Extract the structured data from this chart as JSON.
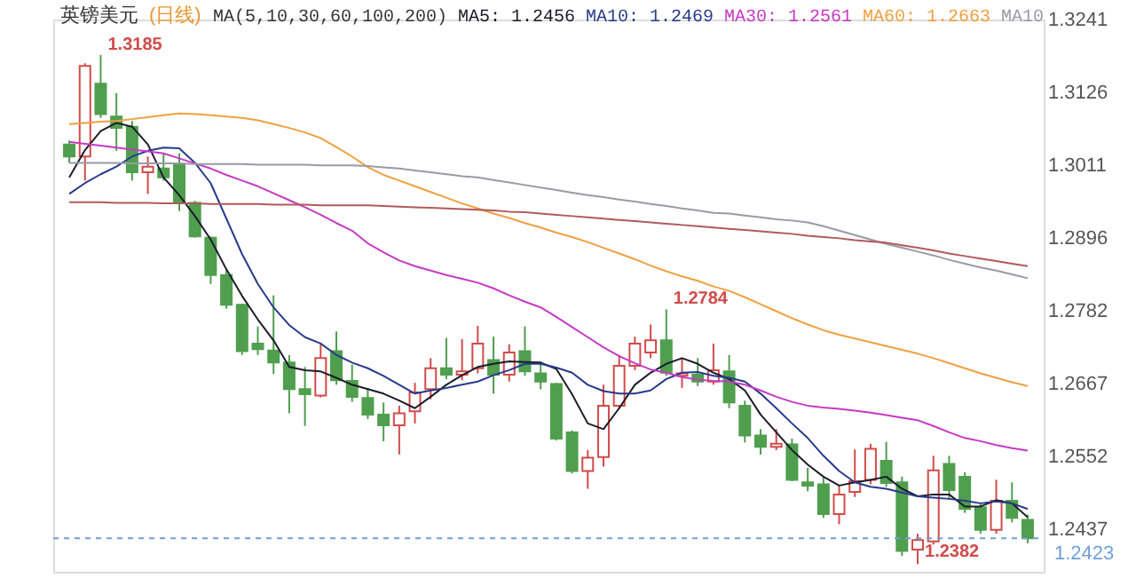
{
  "chart_data": {
    "type": "candlestick",
    "title": "英镑美元",
    "subtitle": "(日线)",
    "legend": "top",
    "tick_labels": "y",
    "annotations": [
      "MA(5,10,30,60,100,200)",
      "1.3185",
      "1.2784",
      "1.2382"
    ],
    "categories": [
      null,
      null,
      null,
      null,
      null,
      null,
      null,
      null,
      null,
      null,
      null,
      null,
      null,
      null,
      null,
      null,
      null,
      null,
      null,
      null,
      null,
      null,
      null,
      null,
      null,
      null,
      null,
      null,
      null,
      null,
      null,
      null,
      null,
      null,
      null,
      null,
      null,
      null,
      null,
      null,
      null,
      null,
      null,
      null,
      null,
      null,
      null,
      null,
      null,
      null,
      null,
      null,
      null,
      null,
      null,
      null,
      null,
      null,
      null,
      null,
      null,
      null
    ],
    "ylim": [
      1.237,
      1.3241
    ],
    "yticks": [
      1.3241,
      1.3126,
      1.3011,
      1.2896,
      1.2782,
      1.2667,
      1.2552,
      1.2437
    ],
    "ohlc": [
      [
        1.3044,
        1.305,
        1.3015,
        1.3025
      ],
      [
        1.3025,
        1.3172,
        1.2987,
        1.3168
      ],
      [
        1.314,
        1.3185,
        1.3086,
        1.3092
      ],
      [
        1.3088,
        1.3125,
        1.3034,
        1.307
      ],
      [
        1.3072,
        1.3081,
        1.2987,
        1.3
      ],
      [
        1.3,
        1.3025,
        1.2966,
        1.3009
      ],
      [
        1.3006,
        1.303,
        1.2987,
        1.2992
      ],
      [
        1.3013,
        1.303,
        1.2939,
        1.2953
      ],
      [
        1.2952,
        1.2955,
        1.2897,
        1.2899
      ],
      [
        1.2897,
        1.2899,
        1.2824,
        1.2838
      ],
      [
        1.2838,
        1.2847,
        1.2785,
        1.2791
      ],
      [
        1.2791,
        1.2793,
        1.2712,
        1.2718
      ],
      [
        1.273,
        1.2757,
        1.2712,
        1.2721
      ],
      [
        1.2719,
        1.2806,
        1.2682,
        1.27
      ],
      [
        1.27,
        1.2712,
        1.262,
        1.2658
      ],
      [
        1.2658,
        1.2693,
        1.26,
        1.265
      ],
      [
        1.2648,
        1.273,
        1.2645,
        1.2707
      ],
      [
        1.2718,
        1.2749,
        1.2665,
        1.2672
      ],
      [
        1.2671,
        1.2697,
        1.2638,
        1.2646
      ],
      [
        1.2644,
        1.266,
        1.2611,
        1.2618
      ],
      [
        1.2618,
        1.2637,
        1.2576,
        1.2601
      ],
      [
        1.2601,
        1.2632,
        1.2555,
        1.262
      ],
      [
        1.2623,
        1.2668,
        1.2604,
        1.2653
      ],
      [
        1.2658,
        1.2707,
        1.2642,
        1.2691
      ],
      [
        1.2691,
        1.2739,
        1.2674,
        1.2681
      ],
      [
        1.2681,
        1.2737,
        1.2672,
        1.2686
      ],
      [
        1.2691,
        1.2758,
        1.2683,
        1.273
      ],
      [
        1.2704,
        1.2741,
        1.2651,
        1.2681
      ],
      [
        1.2681,
        1.2729,
        1.267,
        1.2716
      ],
      [
        1.2718,
        1.2757,
        1.2679,
        1.2686
      ],
      [
        1.2683,
        1.2702,
        1.2658,
        1.267
      ],
      [
        1.2666,
        1.2668,
        1.2577,
        1.258
      ],
      [
        1.259,
        1.2593,
        1.2525,
        1.2529
      ],
      [
        1.2529,
        1.2562,
        1.2501,
        1.255
      ],
      [
        1.2551,
        1.2665,
        1.2536,
        1.2632
      ],
      [
        1.2632,
        1.2712,
        1.2627,
        1.2695
      ],
      [
        1.2695,
        1.2741,
        1.2688,
        1.273
      ],
      [
        1.2716,
        1.276,
        1.2707,
        1.2735
      ],
      [
        1.2735,
        1.2784,
        1.2679,
        1.2684
      ],
      [
        1.2679,
        1.2707,
        1.266,
        1.2683
      ],
      [
        1.2681,
        1.2707,
        1.2663,
        1.267
      ],
      [
        1.267,
        1.273,
        1.2665,
        1.2688
      ],
      [
        1.2686,
        1.2712,
        1.2628,
        1.2637
      ],
      [
        1.2632,
        1.264,
        1.2574,
        1.2585
      ],
      [
        1.2585,
        1.2595,
        1.2555,
        1.2567
      ],
      [
        1.2567,
        1.2595,
        1.2562,
        1.2572
      ],
      [
        1.2571,
        1.258,
        1.2513,
        1.2515
      ],
      [
        1.2511,
        1.2534,
        1.2497,
        1.2506
      ],
      [
        1.2508,
        1.2519,
        1.2455,
        1.2461
      ],
      [
        1.2461,
        1.2506,
        1.2445,
        1.2492
      ],
      [
        1.2496,
        1.2563,
        1.2488,
        1.2513
      ],
      [
        1.2515,
        1.2572,
        1.2508,
        1.2564
      ],
      [
        1.2545,
        1.2575,
        1.2504,
        1.251
      ],
      [
        1.2511,
        1.252,
        1.2395,
        1.2403
      ],
      [
        1.2405,
        1.243,
        1.2382,
        1.242
      ],
      [
        1.2418,
        1.2553,
        1.2413,
        1.253
      ],
      [
        1.254,
        1.2553,
        1.2485,
        1.2499
      ],
      [
        1.252,
        1.2527,
        1.2463,
        1.2469
      ],
      [
        1.2472,
        1.2478,
        1.243,
        1.2436
      ],
      [
        1.2436,
        1.2515,
        1.243,
        1.2482
      ],
      [
        1.2482,
        1.2511,
        1.2448,
        1.2455
      ],
      [
        1.2452,
        1.246,
        1.2415,
        1.2423
      ]
    ],
    "colors": [
      "#4f9f4f",
      "#d24b4b",
      "#4f9f4f",
      "#4f9f4f",
      "#4f9f4f",
      "#d24b4b",
      "#4f9f4f",
      "#4f9f4f",
      "#4f9f4f",
      "#4f9f4f",
      "#4f9f4f",
      "#4f9f4f",
      "#4f9f4f",
      "#4f9f4f",
      "#4f9f4f",
      "#4f9f4f",
      "#d24b4b",
      "#4f9f4f",
      "#4f9f4f",
      "#4f9f4f",
      "#4f9f4f",
      "#d24b4b",
      "#d24b4b",
      "#d24b4b",
      "#4f9f4f",
      "#d24b4b",
      "#d24b4b",
      "#4f9f4f",
      "#d24b4b",
      "#4f9f4f",
      "#4f9f4f",
      "#4f9f4f",
      "#4f9f4f",
      "#d24b4b",
      "#d24b4b",
      "#d24b4b",
      "#d24b4b",
      "#d24b4b",
      "#4f9f4f",
      "#d24b4b",
      "#4f9f4f",
      "#d24b4b",
      "#4f9f4f",
      "#4f9f4f",
      "#4f9f4f",
      "#d24b4b",
      "#4f9f4f",
      "#4f9f4f",
      "#4f9f4f",
      "#d24b4b",
      "#d24b4b",
      "#d24b4b",
      "#4f9f4f",
      "#4f9f4f",
      "#d24b4b",
      "#d24b4b",
      "#4f9f4f",
      "#4f9f4f",
      "#4f9f4f",
      "#d24b4b",
      "#4f9f4f",
      "#4f9f4f"
    ],
    "ref_lines": [
      {
        "axis": "y",
        "value": 1.2423,
        "label": "1.2423",
        "color": "#6f9fd8",
        "line_style": "dashed"
      }
    ],
    "series": [
      {
        "name": "MA5: 1.2456",
        "type": "line",
        "color": "#1c1c2a",
        "values": [
          1.2992,
          1.3035,
          1.3065,
          1.3078,
          1.3072,
          1.3044,
          1.2992,
          1.2964,
          1.2931,
          1.2894,
          1.2847,
          1.2805,
          1.2768,
          1.2735,
          1.2693,
          1.2688,
          1.2686,
          1.2676,
          1.2665,
          1.2658,
          1.2651,
          1.264,
          1.2628,
          1.2646,
          1.2665,
          1.268,
          1.2693,
          1.2698,
          1.2702,
          1.2701,
          1.27,
          1.269,
          1.265,
          1.2604,
          1.2595,
          1.2628,
          1.2665,
          1.2684,
          1.2698,
          1.2707,
          1.2698,
          1.2684,
          1.2674,
          1.2656,
          1.2618,
          1.259,
          1.2562,
          1.2539,
          1.252,
          1.2506,
          1.2511,
          1.2515,
          1.252,
          1.2501,
          1.2489,
          1.2492,
          1.2492,
          1.2473,
          1.2473,
          1.2483,
          1.2478,
          1.2456
        ]
      },
      {
        "name": "MA10: 1.2469",
        "type": "line",
        "color": "#283a8c",
        "values": [
          1.2966,
          1.2983,
          1.2997,
          1.3009,
          1.3025,
          1.3034,
          1.3039,
          1.3038,
          1.3015,
          1.2983,
          1.2927,
          1.2871,
          1.2824,
          1.2787,
          1.2759,
          1.274,
          1.273,
          1.2712,
          1.27,
          1.2691,
          1.2679,
          1.2665,
          1.2651,
          1.2656,
          1.266,
          1.2665,
          1.267,
          1.268,
          1.2688,
          1.2698,
          1.2698,
          1.2692,
          1.2684,
          1.2665,
          1.2655,
          1.2651,
          1.2651,
          1.2656,
          1.2674,
          1.2684,
          1.2685,
          1.2679,
          1.2676,
          1.267,
          1.2651,
          1.2628,
          1.2604,
          1.2581,
          1.2553,
          1.2529,
          1.2511,
          1.2504,
          1.2501,
          1.2495,
          1.2489,
          1.2487,
          1.2485,
          1.2482,
          1.2478,
          1.2481,
          1.2478,
          1.2469
        ]
      },
      {
        "name": "MA30: 1.2561",
        "type": "line",
        "color": "#c639c6",
        "values": [
          1.3048,
          1.3045,
          1.3042,
          1.3039,
          1.3036,
          1.3033,
          1.303,
          1.3022,
          1.3014,
          1.3006,
          1.2996,
          1.2987,
          1.2978,
          1.2967,
          1.2956,
          1.2945,
          1.2933,
          1.292,
          1.2908,
          1.2888,
          1.2874,
          1.2861,
          1.2852,
          1.2845,
          1.2838,
          1.2832,
          1.2826,
          1.2817,
          1.2806,
          1.2796,
          1.2787,
          1.2772,
          1.2756,
          1.274,
          1.2724,
          1.271,
          1.2699,
          1.2689,
          1.2684,
          1.2677,
          1.2673,
          1.2671,
          1.267,
          1.2665,
          1.2656,
          1.2646,
          1.2638,
          1.2632,
          1.2629,
          1.2627,
          1.2624,
          1.2621,
          1.2617,
          1.2613,
          1.2609,
          1.26,
          1.259,
          1.2581,
          1.2576,
          1.257,
          1.2565,
          1.2561
        ]
      },
      {
        "name": "MA60: 1.2663",
        "type": "line",
        "color": "#f0a040",
        "values": [
          1.3076,
          1.3078,
          1.308,
          1.3081,
          1.3084,
          1.3087,
          1.309,
          1.3093,
          1.3092,
          1.309,
          1.3088,
          1.3086,
          1.3082,
          1.3076,
          1.307,
          1.3063,
          1.3054,
          1.304,
          1.3025,
          1.3008,
          1.2996,
          1.2987,
          1.2978,
          1.2969,
          1.296,
          1.2951,
          1.2943,
          1.2935,
          1.2928,
          1.292,
          1.2913,
          1.2905,
          1.2898,
          1.289,
          1.2881,
          1.2872,
          1.2863,
          1.2853,
          1.2844,
          1.2836,
          1.2829,
          1.282,
          1.2813,
          1.2803,
          1.2792,
          1.2781,
          1.277,
          1.276,
          1.2751,
          1.2744,
          1.2738,
          1.2732,
          1.2726,
          1.272,
          1.2714,
          1.2707,
          1.2699,
          1.2691,
          1.2683,
          1.2676,
          1.2669,
          1.2663
        ]
      },
      {
        "name": "MA10",
        "type": "line",
        "color": "#9a9aa6",
        "values": [
          1.3015,
          1.3015,
          1.3015,
          1.3015,
          1.3014,
          1.3014,
          1.3014,
          1.3014,
          1.3013,
          1.3013,
          1.3013,
          1.3013,
          1.3012,
          1.3012,
          1.3012,
          1.3012,
          1.3011,
          1.3011,
          1.3011,
          1.301,
          1.3008,
          1.3006,
          1.3003,
          1.3,
          1.2997,
          1.2994,
          1.2992,
          1.2988,
          1.2984,
          1.298,
          1.2976,
          1.2972,
          1.2968,
          1.2964,
          1.2961,
          1.2957,
          1.2954,
          1.295,
          1.2947,
          1.2943,
          1.294,
          1.2936,
          1.2935,
          1.2932,
          1.2929,
          1.2926,
          1.2924,
          1.2921,
          1.2915,
          1.2908,
          1.2901,
          1.2894,
          1.2887,
          1.2881,
          1.2875,
          1.2869,
          1.2862,
          1.2856,
          1.285,
          1.2845,
          1.2839,
          1.2833
        ]
      },
      {
        "type": "line",
        "color": "#b05a5a",
        "values": [
          1.2953,
          1.2953,
          1.2953,
          1.2952,
          1.2952,
          1.2952,
          1.2951,
          1.2951,
          1.2951,
          1.295,
          1.295,
          1.295,
          1.295,
          1.2949,
          1.2949,
          1.2949,
          1.2948,
          1.2948,
          1.2948,
          1.2948,
          1.2947,
          1.2946,
          1.2945,
          1.2944,
          1.2943,
          1.2942,
          1.2941,
          1.294,
          1.2938,
          1.2937,
          1.2935,
          1.2933,
          1.2931,
          1.2929,
          1.2927,
          1.2925,
          1.2923,
          1.2921,
          1.2919,
          1.2917,
          1.2915,
          1.2913,
          1.2911,
          1.2909,
          1.2907,
          1.2905,
          1.2903,
          1.29,
          1.2898,
          1.2896,
          1.2893,
          1.2891,
          1.2889,
          1.2885,
          1.2881,
          1.2877,
          1.2872,
          1.2868,
          1.2864,
          1.286,
          1.2856,
          1.2852
        ]
      }
    ]
  }
}
